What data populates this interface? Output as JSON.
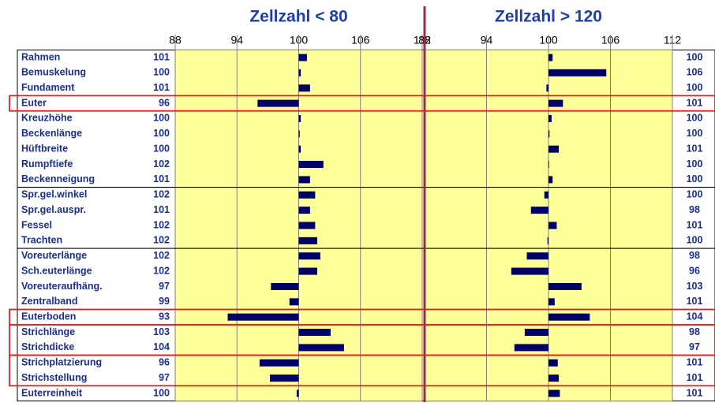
{
  "chart_data": [
    {
      "type": "bar",
      "title": "Zellzahl < 80",
      "color": "#000066",
      "baseline": 100,
      "xlim": [
        88,
        112
      ],
      "xticks": [
        88,
        94,
        100,
        106,
        112
      ],
      "categories": [
        "Rahmen",
        "Bemuskelung",
        "Fundament",
        "Euter",
        "Kreuzhöhe",
        "Beckenlänge",
        "Hüftbreite",
        "Rumpftiefe",
        "Beckenneigung",
        "Spr.gel.winkel",
        "Spr.gel.auspr.",
        "Fessel",
        "Trachten",
        "Voreuterlänge",
        "Sch.euterlänge",
        "Voreuteraufhäng.",
        "Zentralband",
        "Euterboden",
        "Strichlänge",
        "Strichdicke",
        "Strichplatzierung",
        "Strichstellung",
        "Euterreinheit"
      ],
      "values": [
        100.8,
        100.2,
        101.1,
        96.0,
        100.2,
        100.1,
        100.2,
        102.4,
        101.1,
        101.6,
        101.1,
        101.6,
        101.8,
        102.1,
        101.8,
        97.3,
        99.1,
        93.1,
        103.1,
        104.4,
        96.2,
        97.2,
        99.8
      ],
      "value_labels": [
        "101",
        "100",
        "101",
        "96",
        "100",
        "100",
        "100",
        "102",
        "101",
        "102",
        "101",
        "102",
        "102",
        "102",
        "102",
        "97",
        "99",
        "93",
        "103",
        "104",
        "96",
        "97",
        "100"
      ]
    },
    {
      "type": "bar",
      "title": "Zellzahl > 120",
      "color": "#000066",
      "baseline": 100,
      "xlim": [
        88,
        112
      ],
      "xticks": [
        88,
        94,
        100,
        106,
        112
      ],
      "values": [
        100.4,
        105.6,
        99.8,
        101.4,
        100.3,
        100.1,
        101.0,
        100.0,
        100.4,
        99.6,
        98.3,
        100.8,
        99.9,
        97.9,
        96.4,
        103.2,
        100.6,
        104.0,
        97.7,
        96.7,
        100.9,
        101.0,
        101.1
      ],
      "value_labels": [
        "100",
        "106",
        "100",
        "101",
        "100",
        "100",
        "101",
        "100",
        "100",
        "100",
        "98",
        "101",
        "100",
        "98",
        "96",
        "103",
        "101",
        "104",
        "98",
        "97",
        "101",
        "101",
        "101"
      ]
    }
  ]
}
